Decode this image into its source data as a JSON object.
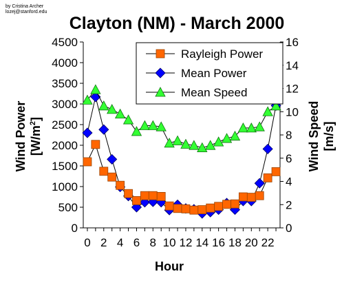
{
  "credit": {
    "line1": "by Cristina Archer",
    "line2": "lozej@stanford.edu"
  },
  "chart_data": {
    "type": "line",
    "title": "Clayton (NM) - March 2000",
    "xlabel": "Hour",
    "ylabel_left_line1": "Wind Power",
    "ylabel_left_line2": "[W/m",
    "ylabel_left_sup": "2",
    "ylabel_left_close": "]",
    "ylabel_right_line1": "Wind Speed",
    "ylabel_right_line2": "[m/s]",
    "x": [
      0,
      1,
      2,
      3,
      4,
      5,
      6,
      7,
      8,
      9,
      10,
      11,
      12,
      13,
      14,
      15,
      16,
      17,
      18,
      19,
      20,
      21,
      22,
      23
    ],
    "x_tick_labels": [
      "0",
      "2",
      "4",
      "6",
      "8",
      "10",
      "12",
      "14",
      "16",
      "18",
      "20",
      "22"
    ],
    "xlim": [
      -0.5,
      23.5
    ],
    "ylim_left": [
      0,
      4500
    ],
    "ylim_right": [
      0,
      16
    ],
    "y_left_ticks": [
      0,
      500,
      1000,
      1500,
      2000,
      2500,
      3000,
      3500,
      4000,
      4500
    ],
    "y_right_ticks": [
      0,
      2,
      4,
      6,
      8,
      10,
      12,
      14,
      16
    ],
    "legend_position": "top-right",
    "grid": false,
    "series": [
      {
        "name": "Rayleigh Power",
        "axis": "left",
        "marker": "square",
        "color": "#ff6600",
        "values": [
          1600,
          2020,
          1370,
          1230,
          1030,
          830,
          660,
          780,
          780,
          760,
          530,
          470,
          460,
          430,
          440,
          480,
          520,
          570,
          580,
          750,
          740,
          780,
          1210,
          1360
        ]
      },
      {
        "name": "Mean Power",
        "axis": "left",
        "marker": "diamond",
        "color": "#0000ff",
        "values": [
          2300,
          3170,
          2380,
          1660,
          990,
          770,
          500,
          620,
          630,
          620,
          430,
          560,
          470,
          450,
          350,
          380,
          440,
          600,
          440,
          650,
          650,
          1080,
          1910,
          2960
        ]
      },
      {
        "name": "Mean Speed",
        "axis": "right",
        "marker": "triangle",
        "color": "#33ff33",
        "values": [
          11.0,
          11.9,
          10.5,
          10.2,
          9.8,
          9.3,
          8.3,
          8.8,
          8.8,
          8.7,
          7.3,
          7.5,
          7.2,
          7.1,
          6.9,
          7.1,
          7.4,
          7.7,
          7.9,
          8.6,
          8.6,
          8.7,
          10.0,
          10.5
        ]
      }
    ]
  }
}
